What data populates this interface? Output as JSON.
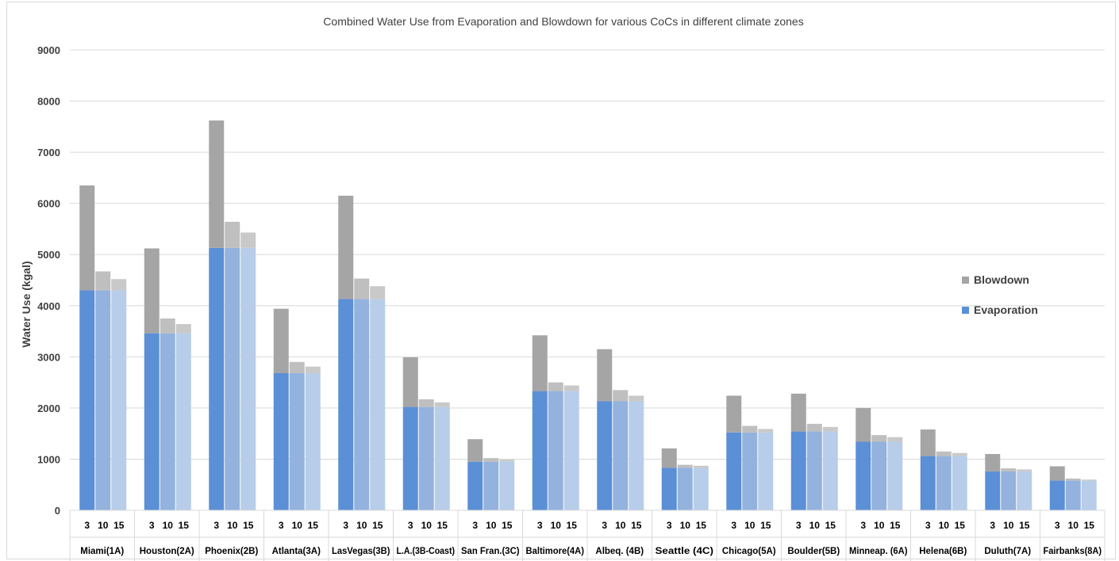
{
  "chart_data": {
    "type": "bar",
    "stacked": true,
    "title": "Combined Water Use from Evaporation and Blowdown for various CoCs in different climate zones",
    "ylabel": "Water Use (kgal)",
    "xlabel": "",
    "ylim": [
      0,
      9000
    ],
    "yticks": [
      0,
      1000,
      2000,
      3000,
      4000,
      5000,
      6000,
      7000,
      8000,
      9000
    ],
    "grid": true,
    "legend_position": "right",
    "sub_categories": [
      "3",
      "10",
      "15"
    ],
    "groups": [
      {
        "label": "Miami(1A)",
        "evaporation": 4300,
        "blowdown": [
          2050,
          370,
          220
        ]
      },
      {
        "label": "Houston(2A)",
        "evaporation": 3460,
        "blowdown": [
          1660,
          290,
          180
        ]
      },
      {
        "label": "Phoenix(2B)",
        "evaporation": 5130,
        "blowdown": [
          2490,
          510,
          300
        ]
      },
      {
        "label": "Atlanta(3A)",
        "evaporation": 2680,
        "blowdown": [
          1260,
          220,
          130
        ]
      },
      {
        "label": "LasVegas(3B)",
        "evaporation": 4130,
        "blowdown": [
          2020,
          400,
          250
        ]
      },
      {
        "label": "L.A.(3B-Coast)",
        "evaporation": 2020,
        "blowdown": [
          970,
          150,
          90
        ]
      },
      {
        "label": "San Fran.(3C)",
        "evaporation": 950,
        "blowdown": [
          440,
          70,
          40
        ]
      },
      {
        "label": "Baltimore(4A)",
        "evaporation": 2330,
        "blowdown": [
          1090,
          170,
          110
        ]
      },
      {
        "label": "Albeq. (4B)",
        "evaporation": 2130,
        "blowdown": [
          1020,
          220,
          110
        ]
      },
      {
        "label": "Seattle (4C)",
        "evaporation": 830,
        "blowdown": [
          380,
          60,
          40
        ]
      },
      {
        "label": "Chicago(5A)",
        "evaporation": 1520,
        "blowdown": [
          720,
          130,
          70
        ]
      },
      {
        "label": "Boulder(5B)",
        "evaporation": 1540,
        "blowdown": [
          740,
          150,
          90
        ]
      },
      {
        "label": "Minneap. (6A)",
        "evaporation": 1340,
        "blowdown": [
          660,
          130,
          90
        ]
      },
      {
        "label": "Helena(6B)",
        "evaporation": 1060,
        "blowdown": [
          520,
          90,
          60
        ]
      },
      {
        "label": "Duluth(7A)",
        "evaporation": 760,
        "blowdown": [
          340,
          60,
          40
        ]
      },
      {
        "label": "Fairbanks(8A)",
        "evaporation": 580,
        "blowdown": [
          280,
          40,
          20
        ]
      }
    ],
    "series": [
      {
        "name": "Blowdown",
        "colors": [
          "#a5a5a5",
          "#bfbfbf",
          "#c9c9c9"
        ]
      },
      {
        "name": "Evaporation",
        "colors": [
          "#5b8fd6",
          "#93b2dd",
          "#b7cde9"
        ]
      }
    ],
    "legend": [
      {
        "name": "Blowdown",
        "color": "#a5a5a5"
      },
      {
        "name": "Evaporation",
        "color": "#5b8fd6"
      }
    ],
    "gridline_color": "#d9d9d9",
    "axis_text_color": "#404040"
  }
}
